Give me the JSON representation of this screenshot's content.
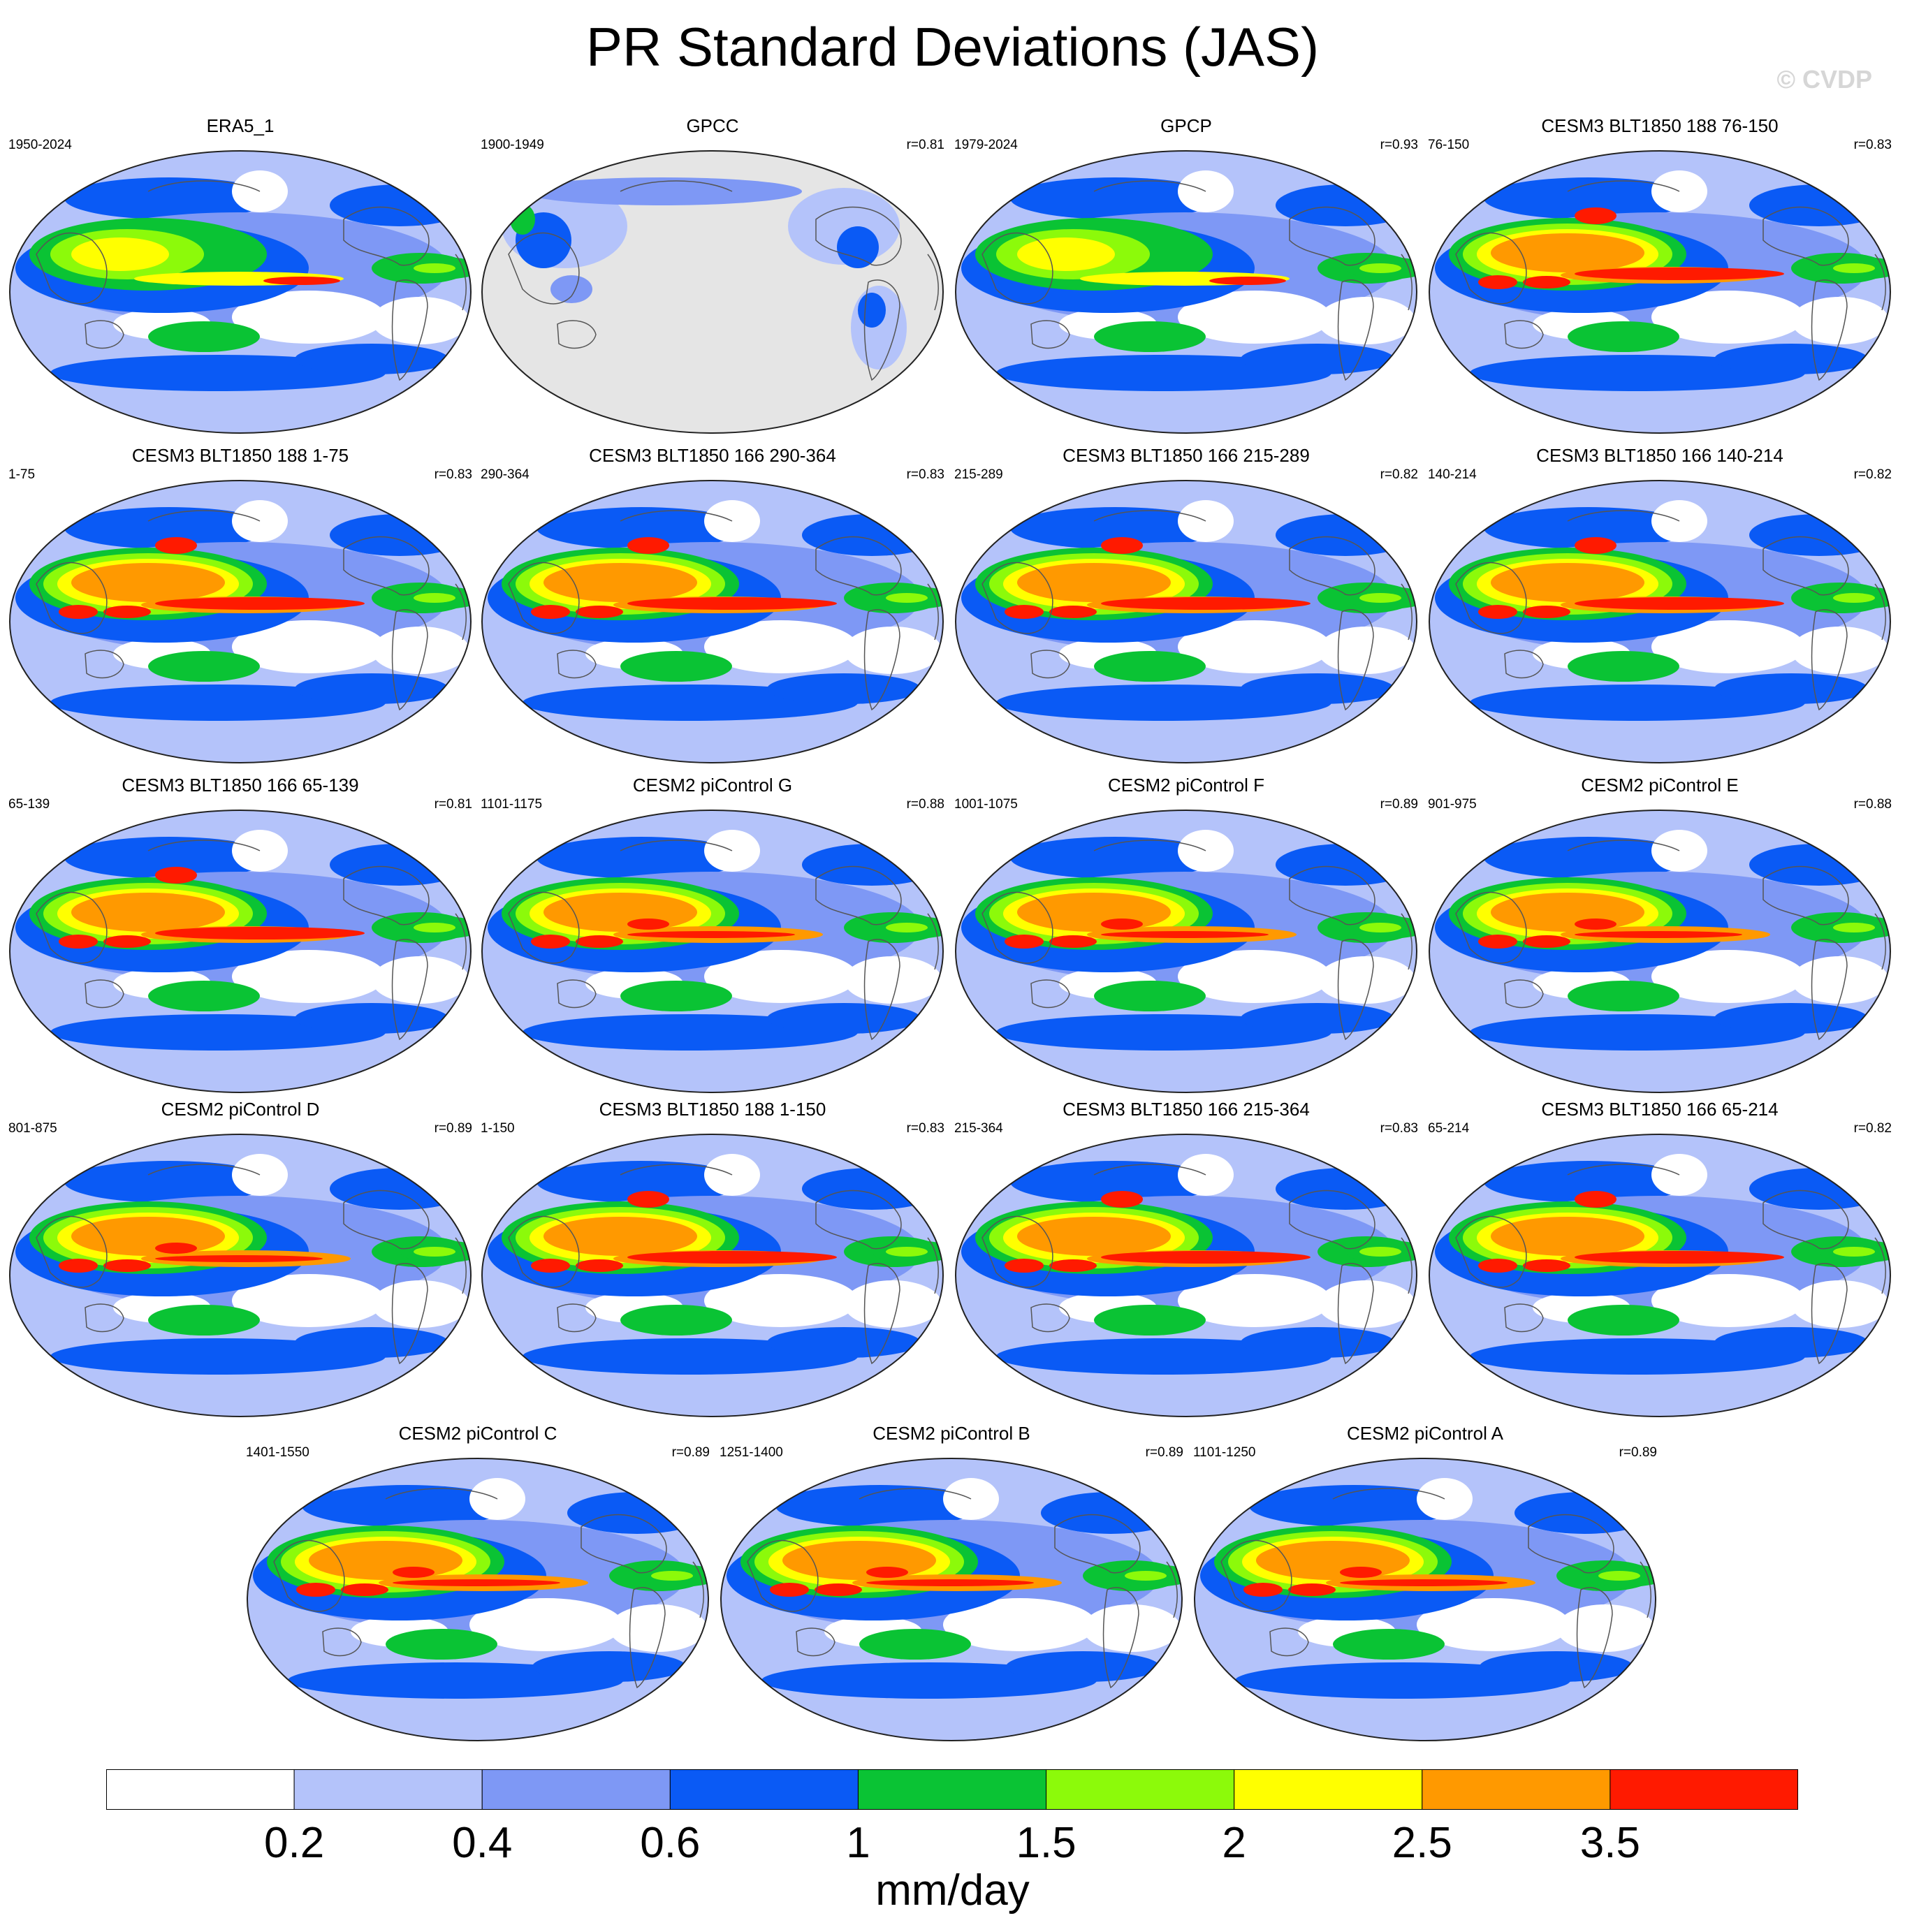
{
  "title": "PR Standard Deviations (JAS)",
  "watermark": "© CVDP",
  "panels": [
    {
      "title": "ERA5_1",
      "years": "1950-2024",
      "r": "",
      "style": "obs"
    },
    {
      "title": "GPCC",
      "years": "1900-1949",
      "r": "r=0.81",
      "style": "land"
    },
    {
      "title": "GPCP",
      "years": "1979-2024",
      "r": "r=0.93",
      "style": "obs"
    },
    {
      "title": "CESM3 BLT1850 188 76-150",
      "years": "76-150",
      "r": "r=0.83",
      "style": "cesm3"
    },
    {
      "title": "CESM3 BLT1850 188 1-75",
      "years": "1-75",
      "r": "r=0.83",
      "style": "cesm3"
    },
    {
      "title": "CESM3 BLT1850 166 290-364",
      "years": "290-364",
      "r": "r=0.83",
      "style": "cesm3"
    },
    {
      "title": "CESM3 BLT1850 166 215-289",
      "years": "215-289",
      "r": "r=0.82",
      "style": "cesm3"
    },
    {
      "title": "CESM3 BLT1850 166 140-214",
      "years": "140-214",
      "r": "r=0.82",
      "style": "cesm3"
    },
    {
      "title": "CESM3 BLT1850 166 65-139",
      "years": "65-139",
      "r": "r=0.81",
      "style": "cesm3"
    },
    {
      "title": "CESM2 piControl G",
      "years": "1101-1175",
      "r": "r=0.88",
      "style": "cesm2"
    },
    {
      "title": "CESM2 piControl F",
      "years": "1001-1075",
      "r": "r=0.89",
      "style": "cesm2"
    },
    {
      "title": "CESM2 piControl E",
      "years": "901-975",
      "r": "r=0.88",
      "style": "cesm2"
    },
    {
      "title": "CESM2 piControl D",
      "years": "801-875",
      "r": "r=0.89",
      "style": "cesm2"
    },
    {
      "title": "CESM3 BLT1850 188 1-150",
      "years": "1-150",
      "r": "r=0.83",
      "style": "cesm3"
    },
    {
      "title": "CESM3 BLT1850 166 215-364",
      "years": "215-364",
      "r": "r=0.83",
      "style": "cesm3"
    },
    {
      "title": "CESM3 BLT1850 166 65-214",
      "years": "65-214",
      "r": "r=0.82",
      "style": "cesm3"
    },
    {
      "title": "CESM2 piControl C",
      "years": "1401-1550",
      "r": "r=0.89",
      "style": "cesm2"
    },
    {
      "title": "CESM2 piControl B",
      "years": "1251-1400",
      "r": "r=0.89",
      "style": "cesm2"
    },
    {
      "title": "CESM2 piControl A",
      "years": "1101-1250",
      "r": "r=0.89",
      "style": "cesm2"
    }
  ],
  "colorbar": {
    "units": "mm/day",
    "colors": [
      "#ffffff",
      "#b4c3fa",
      "#7e98f5",
      "#0a5af5",
      "#0ac334",
      "#8cfa0a",
      "#ffff00",
      "#ff9900",
      "#ff1a00"
    ],
    "tick_labels": [
      "0.2",
      "0.4",
      "0.6",
      "1",
      "1.5",
      "2",
      "2.5",
      "3.5"
    ]
  },
  "land_mask_color": "#e5e5e5"
}
